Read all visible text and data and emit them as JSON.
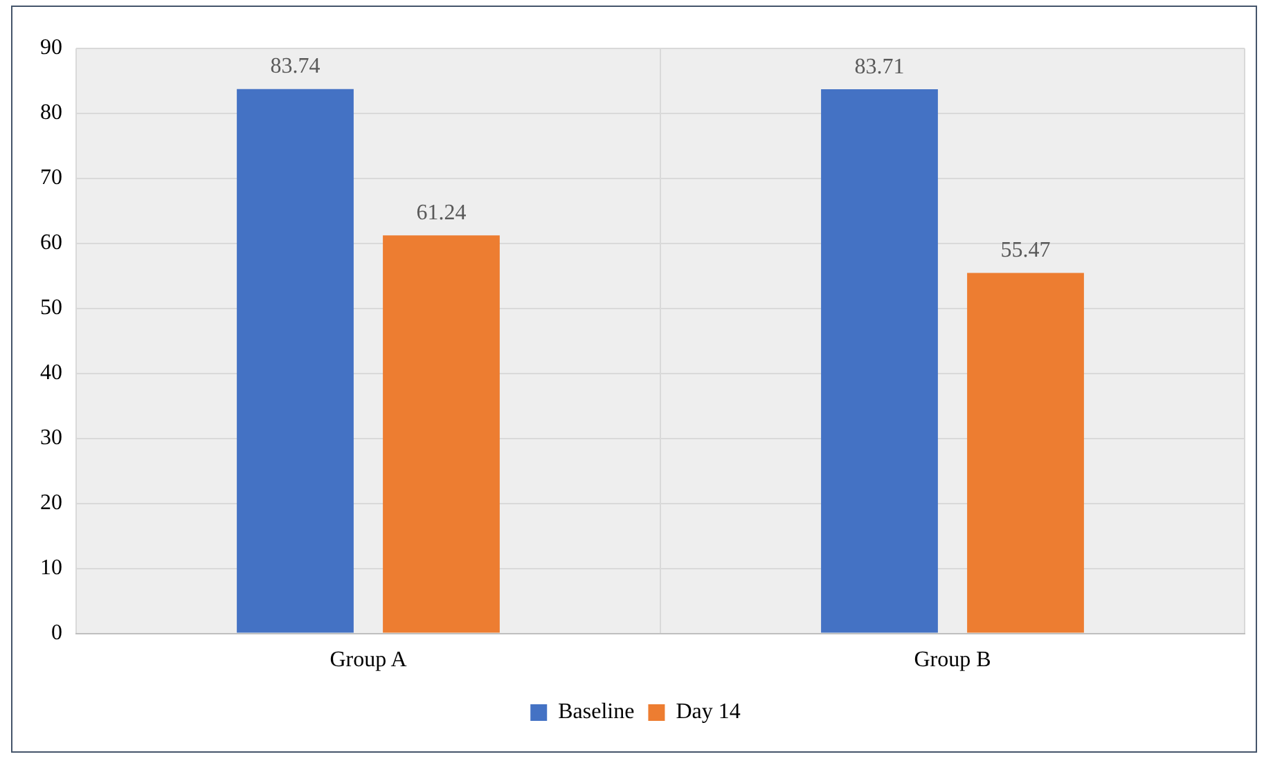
{
  "chart_data": {
    "type": "bar",
    "categories": [
      "Group A",
      "Group B"
    ],
    "series": [
      {
        "name": "Baseline",
        "color": "#4472c4",
        "values": [
          83.74,
          83.71
        ]
      },
      {
        "name": "Day 14",
        "color": "#ed7d31",
        "values": [
          61.24,
          55.47
        ]
      }
    ],
    "ylim": [
      0,
      90
    ],
    "yticks": [
      0,
      10,
      20,
      30,
      40,
      50,
      60,
      70,
      80,
      90
    ],
    "grid": true,
    "legend": "bottom",
    "data_labels": true
  }
}
